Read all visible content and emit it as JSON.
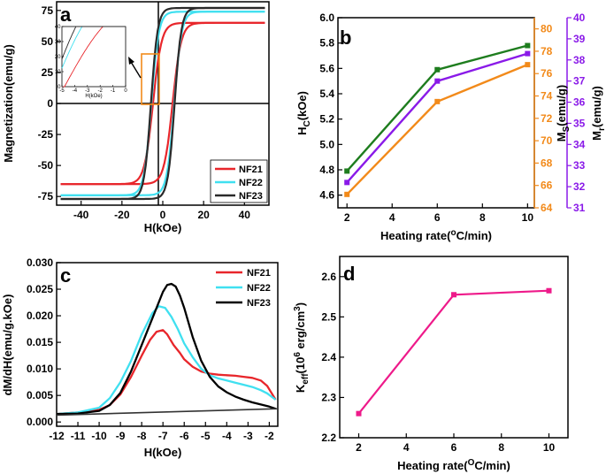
{
  "chart_data": [
    {
      "id": "a",
      "panel_label": "a",
      "type": "line",
      "xlabel": "H(kOe)",
      "ylabel": "Magnetization(emu/g)",
      "xlim": [
        -52,
        52
      ],
      "ylim": [
        -82,
        82
      ],
      "xticks": [
        -40,
        -20,
        0,
        20,
        40
      ],
      "yticks": [
        -75,
        -50,
        -25,
        0,
        25,
        50,
        75
      ],
      "xtick_labels": [
        "-40",
        "-20",
        "0",
        "20",
        "40"
      ],
      "ytick_labels": [
        "-75",
        "-50",
        "-25",
        "0",
        "25",
        "50",
        "75"
      ],
      "series": [
        {
          "name": "NF21",
          "color": "#e8262b",
          "ms": 65,
          "hc": 4.8,
          "w": 4.2
        },
        {
          "name": "NF22",
          "color": "#40e0f0",
          "ms": 74,
          "hc": 5.6,
          "w": 3.6
        },
        {
          "name": "NF23",
          "color": "#2a2a2a",
          "ms": 77,
          "hc": 5.8,
          "w": 3.3
        }
      ],
      "inset": {
        "xlim": [
          -5,
          0
        ],
        "ylim": [
          0,
          40
        ],
        "xticks": [
          -5,
          -4,
          -3,
          -2,
          -1,
          0
        ],
        "yticks": [
          0,
          10,
          20,
          30,
          40
        ],
        "xtick_labels": [
          "-5",
          "-4",
          "-3",
          "-2",
          "-1",
          "0"
        ],
        "ytick_labels": [
          "0",
          "10",
          "20",
          "30",
          "40"
        ],
        "xlabel": "H(kOe)"
      }
    },
    {
      "id": "b",
      "panel_label": "b",
      "type": "line",
      "xlabel_main": "Heating rate(",
      "xlabel_sup": "o",
      "xlabel_tail": "C/min)",
      "x": [
        2,
        6,
        10
      ],
      "xlim": [
        1.6,
        10.3
      ],
      "xticks": [
        2,
        4,
        6,
        8,
        10
      ],
      "xtick_labels": [
        "2",
        "4",
        "6",
        "8",
        "10"
      ],
      "axes": [
        {
          "name": "Hc",
          "label_main": "H",
          "label_sub": "C",
          "label_tail": "(kOe)",
          "color": "#000000",
          "ylim": [
            4.5,
            6.0
          ],
          "ticks": [
            4.6,
            4.8,
            5.0,
            5.2,
            5.4,
            5.6,
            5.8,
            6.0
          ],
          "tick_labels": [
            "4.6",
            "4.8",
            "5.0",
            "5.2",
            "5.4",
            "5.6",
            "5.8",
            "6.0"
          ]
        },
        {
          "name": "Ms",
          "label_main": "M",
          "label_sub": "S",
          "label_tail": "(emu/g)",
          "color": "#f28a1a",
          "ylim": [
            64,
            81
          ],
          "ticks": [
            64,
            66,
            68,
            70,
            72,
            74,
            76,
            78,
            80
          ],
          "tick_labels": [
            "64",
            "66",
            "68",
            "70",
            "72",
            "74",
            "76",
            "78",
            "80"
          ]
        },
        {
          "name": "Mr",
          "label_main": "M",
          "label_sub": "r",
          "label_tail": "(emu/g)",
          "color": "#8a1ae8",
          "ylim": [
            31,
            40
          ],
          "ticks": [
            31,
            32,
            33,
            34,
            35,
            36,
            37,
            38,
            39,
            40
          ],
          "tick_labels": [
            "31",
            "32",
            "33",
            "34",
            "35",
            "36",
            "37",
            "38",
            "39",
            "40"
          ]
        }
      ],
      "series": [
        {
          "name": "Hc",
          "axis": 0,
          "color": "#1e7d1e",
          "values": [
            4.79,
            5.59,
            5.78
          ]
        },
        {
          "name": "Ms",
          "axis": 1,
          "color": "#f28a1a",
          "values": [
            65.2,
            73.5,
            76.8
          ]
        },
        {
          "name": "Mr",
          "axis": 2,
          "color": "#8a1ae8",
          "values": [
            32.2,
            37.0,
            38.3
          ]
        }
      ]
    },
    {
      "id": "c",
      "panel_label": "c",
      "type": "line",
      "xlabel": "H(kOe)",
      "ylabel": "dM/dH(emu/g.kOe)",
      "xlim": [
        -12,
        -1.6
      ],
      "ylim": [
        -0.0008,
        0.03
      ],
      "xticks": [
        -12,
        -11,
        -10,
        -9,
        -8,
        -7,
        -6,
        -5,
        -4,
        -3,
        -2
      ],
      "xtick_labels": [
        "-12",
        "-11",
        "-10",
        "-9",
        "-8",
        "-7",
        "-6",
        "-5",
        "-4",
        "-3",
        "-2"
      ],
      "yticks": [
        0.0,
        0.005,
        0.01,
        0.015,
        0.02,
        0.025,
        0.03
      ],
      "ytick_labels": [
        "0.000",
        "0.005",
        "0.010",
        "0.015",
        "0.020",
        "0.025",
        "0.030"
      ],
      "series": [
        {
          "name": "NF21",
          "color": "#e8262b",
          "x": [
            -12,
            -11,
            -10,
            -9.5,
            -9,
            -8.5,
            -8,
            -7.6,
            -7.3,
            -7.0,
            -6.8,
            -6.5,
            -6.2,
            -6.0,
            -5.6,
            -5.2,
            -4.8,
            -4.4,
            -4.0,
            -3.6,
            -3.2,
            -2.8,
            -2.4,
            -2.1,
            -1.9,
            -1.7
          ],
          "y": [
            0.0015,
            0.0018,
            0.0023,
            0.0032,
            0.0052,
            0.0085,
            0.0125,
            0.0155,
            0.017,
            0.0173,
            0.0165,
            0.0145,
            0.013,
            0.0118,
            0.0104,
            0.0095,
            0.0091,
            0.0089,
            0.0088,
            0.0087,
            0.0085,
            0.0083,
            0.0078,
            0.0068,
            0.0055,
            0.0042
          ]
        },
        {
          "name": "NF22",
          "color": "#40e0f0",
          "x": [
            -12,
            -11,
            -10,
            -9.5,
            -9,
            -8.5,
            -8,
            -7.5,
            -7.2,
            -6.9,
            -6.6,
            -6.3,
            -6.0,
            -5.6,
            -5.2,
            -4.8,
            -4.4,
            -4.0,
            -3.6,
            -3.2,
            -2.8,
            -2.4,
            -2.1,
            -1.9,
            -1.7
          ],
          "y": [
            0.0015,
            0.0018,
            0.0027,
            0.0045,
            0.0075,
            0.0115,
            0.0165,
            0.0205,
            0.0218,
            0.0215,
            0.0198,
            0.0175,
            0.0148,
            0.0122,
            0.01,
            0.0088,
            0.0082,
            0.0078,
            0.0074,
            0.007,
            0.0066,
            0.006,
            0.0054,
            0.0048,
            0.0042
          ]
        },
        {
          "name": "NF23",
          "color": "#000000",
          "x": [
            -12,
            -11,
            -10,
            -9.5,
            -9,
            -8.5,
            -8,
            -7.5,
            -7.0,
            -6.8,
            -6.6,
            -6.4,
            -6.2,
            -6.0,
            -5.6,
            -5.2,
            -4.8,
            -4.4,
            -4.0,
            -3.6,
            -3.2,
            -2.8,
            -2.4,
            -2.0,
            -1.7
          ],
          "y": [
            0.0015,
            0.0016,
            0.0021,
            0.0032,
            0.0055,
            0.0095,
            0.0145,
            0.0195,
            0.0245,
            0.0258,
            0.026,
            0.0255,
            0.0238,
            0.0215,
            0.016,
            0.0115,
            0.0085,
            0.0067,
            0.0056,
            0.0048,
            0.0042,
            0.0037,
            0.0033,
            0.0029,
            0.0025
          ]
        },
        {
          "name": "baseline",
          "color": "#333333",
          "x": [
            -12,
            -1.6
          ],
          "y": [
            0.0013,
            0.0025
          ]
        }
      ]
    },
    {
      "id": "d",
      "panel_label": "d",
      "type": "line",
      "xlabel_main": "Heating rate(",
      "xlabel_sup": "O",
      "xlabel_tail": "C/min)",
      "ylabel_main": "K",
      "ylabel_sub": "eff",
      "ylabel_mid": "(10",
      "ylabel_sup1": "6",
      "ylabel_tail": " erg/cm",
      "ylabel_sup2": "3",
      "ylabel_end": ")",
      "x": [
        2,
        6,
        10
      ],
      "values": [
        2.26,
        2.555,
        2.565
      ],
      "color": "#ee1a8a",
      "xlim": [
        1.2,
        10.8
      ],
      "ylim": [
        2.2,
        2.65
      ],
      "xticks": [
        2,
        4,
        6,
        8,
        10
      ],
      "xtick_labels": [
        "2",
        "4",
        "6",
        "8",
        "10"
      ],
      "yticks": [
        2.2,
        2.3,
        2.4,
        2.5,
        2.6
      ],
      "ytick_labels": [
        "2.2",
        "2.3",
        "2.4",
        "2.5",
        "2.6"
      ]
    }
  ]
}
